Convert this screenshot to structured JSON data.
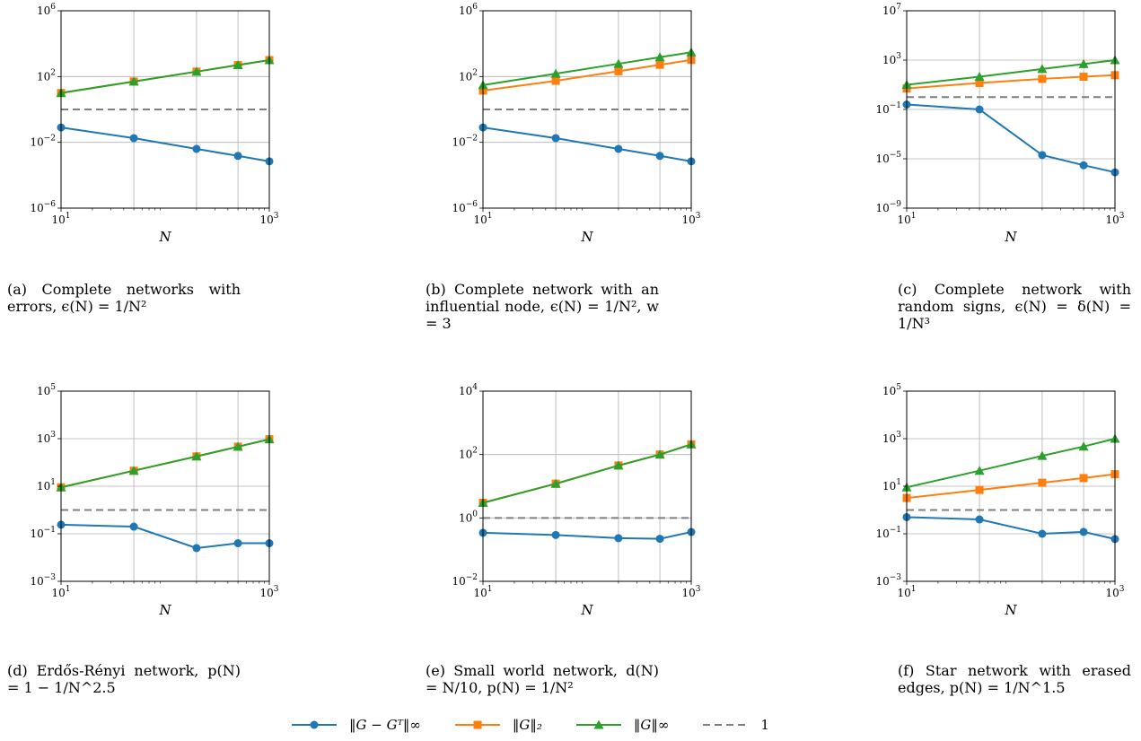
{
  "chart_data": [
    {
      "type": "line",
      "log_x": true,
      "log_y": true,
      "xlim": [
        10,
        1000
      ],
      "ylim_exp": [
        -6,
        6
      ],
      "xticks_exp": [
        1,
        3
      ],
      "yticks_exp": [
        -6,
        -2,
        2,
        6
      ],
      "xlabel": "N",
      "x": [
        10,
        50,
        200,
        500,
        1000
      ],
      "series": [
        {
          "name": "‖G − G^T‖∞",
          "color": "#1f77b4",
          "marker": "circle",
          "values": [
            0.08,
            0.018,
            0.004,
            0.0015,
            0.0007
          ]
        },
        {
          "name": "‖G‖₂",
          "color": "#ff7f0e",
          "marker": "square",
          "values": [
            10,
            50,
            200,
            500,
            1000
          ]
        },
        {
          "name": "‖G‖∞",
          "color": "#2ca02c",
          "marker": "triangle",
          "values": [
            10,
            50,
            200,
            500,
            1000
          ]
        },
        {
          "name": "1",
          "color": "#7f7f7f",
          "marker": "none",
          "dashed": true,
          "values": [
            1,
            1,
            1,
            1,
            1
          ]
        }
      ],
      "caption": "(a) Complete networks with errors, ϵ(N) = 1/N²"
    },
    {
      "type": "line",
      "log_x": true,
      "log_y": true,
      "xlim": [
        10,
        1000
      ],
      "ylim_exp": [
        -6,
        6
      ],
      "xticks_exp": [
        1,
        3
      ],
      "yticks_exp": [
        -6,
        -2,
        2,
        6
      ],
      "xlabel": "N",
      "x": [
        10,
        50,
        200,
        500,
        1000
      ],
      "series": [
        {
          "name": "‖G − G^T‖∞",
          "color": "#1f77b4",
          "marker": "circle",
          "values": [
            0.08,
            0.018,
            0.004,
            0.0015,
            0.0007
          ]
        },
        {
          "name": "‖G‖₂",
          "color": "#ff7f0e",
          "marker": "square",
          "values": [
            14,
            55,
            210,
            520,
            1030
          ]
        },
        {
          "name": "‖G‖∞",
          "color": "#2ca02c",
          "marker": "triangle",
          "values": [
            30,
            150,
            600,
            1500,
            3000
          ]
        },
        {
          "name": "1",
          "color": "#7f7f7f",
          "marker": "none",
          "dashed": true,
          "values": [
            1,
            1,
            1,
            1,
            1
          ]
        }
      ],
      "caption": "(b) Complete network with an influential node, ϵ(N) = 1/N², w = 3"
    },
    {
      "type": "line",
      "log_x": true,
      "log_y": true,
      "xlim": [
        10,
        1000
      ],
      "ylim_exp": [
        -9,
        7
      ],
      "xticks_exp": [
        1,
        3
      ],
      "yticks_exp": [
        -9,
        -5,
        -1,
        3,
        7
      ],
      "xlabel": "N",
      "x": [
        10,
        50,
        200,
        500,
        1000
      ],
      "series": [
        {
          "name": "‖G − G^T‖∞",
          "color": "#1f77b4",
          "marker": "circle",
          "values": [
            0.25,
            0.1,
            2e-05,
            3e-06,
            8e-07
          ]
        },
        {
          "name": "‖G‖₂",
          "color": "#ff7f0e",
          "marker": "square",
          "values": [
            5,
            14,
            30,
            45,
            60
          ]
        },
        {
          "name": "‖G‖∞",
          "color": "#2ca02c",
          "marker": "triangle",
          "values": [
            10,
            45,
            190,
            480,
            1000
          ]
        },
        {
          "name": "1",
          "color": "#7f7f7f",
          "marker": "none",
          "dashed": true,
          "values": [
            1,
            1,
            1,
            1,
            1
          ]
        }
      ],
      "caption": "(c) Complete network with random signs, ϵ(N) = δ(N) = 1/N³"
    },
    {
      "type": "line",
      "log_x": true,
      "log_y": true,
      "xlim": [
        10,
        1000
      ],
      "ylim_exp": [
        -3,
        5
      ],
      "xticks_exp": [
        1,
        3
      ],
      "yticks_exp": [
        -3,
        -1,
        1,
        3,
        5
      ],
      "xlabel": "N",
      "x": [
        10,
        50,
        200,
        500,
        1000
      ],
      "series": [
        {
          "name": "‖G − G^T‖∞",
          "color": "#1f77b4",
          "marker": "circle",
          "values": [
            0.24,
            0.2,
            0.025,
            0.04,
            0.04
          ]
        },
        {
          "name": "‖G‖₂",
          "color": "#ff7f0e",
          "marker": "square",
          "values": [
            9,
            45,
            180,
            460,
            950
          ]
        },
        {
          "name": "‖G‖∞",
          "color": "#2ca02c",
          "marker": "triangle",
          "values": [
            9,
            45,
            180,
            460,
            950
          ]
        },
        {
          "name": "1",
          "color": "#7f7f7f",
          "marker": "none",
          "dashed": true,
          "values": [
            1,
            1,
            1,
            1,
            1
          ]
        }
      ],
      "caption": "(d) Erdős-Rényi network, p(N) = 1 − 1/N^2.5"
    },
    {
      "type": "line",
      "log_x": true,
      "log_y": true,
      "xlim": [
        10,
        1000
      ],
      "ylim_exp": [
        -2,
        4
      ],
      "xticks_exp": [
        1,
        3
      ],
      "yticks_exp": [
        -2,
        0,
        2,
        4
      ],
      "xlabel": "N",
      "x": [
        10,
        50,
        200,
        500,
        1000
      ],
      "series": [
        {
          "name": "‖G − G^T‖∞",
          "color": "#1f77b4",
          "marker": "circle",
          "values": [
            0.34,
            0.29,
            0.23,
            0.22,
            0.36
          ]
        },
        {
          "name": "‖G‖₂",
          "color": "#ff7f0e",
          "marker": "square",
          "values": [
            3,
            12,
            45,
            100,
            210
          ]
        },
        {
          "name": "‖G‖∞",
          "color": "#2ca02c",
          "marker": "triangle",
          "values": [
            3,
            12,
            45,
            100,
            210
          ]
        },
        {
          "name": "1",
          "color": "#7f7f7f",
          "marker": "none",
          "dashed": true,
          "values": [
            1,
            1,
            1,
            1,
            1
          ]
        }
      ],
      "caption": "(e) Small world network, d(N) = N/10, p(N) = 1/N²"
    },
    {
      "type": "line",
      "log_x": true,
      "log_y": true,
      "xlim": [
        10,
        1000
      ],
      "ylim_exp": [
        -3,
        5
      ],
      "xticks_exp": [
        1,
        3
      ],
      "yticks_exp": [
        -3,
        -1,
        1,
        3,
        5
      ],
      "xlabel": "N",
      "x": [
        10,
        50,
        200,
        500,
        1000
      ],
      "series": [
        {
          "name": "‖G − G^T‖∞",
          "color": "#1f77b4",
          "marker": "circle",
          "values": [
            0.5,
            0.4,
            0.1,
            0.12,
            0.06
          ]
        },
        {
          "name": "‖G‖₂",
          "color": "#ff7f0e",
          "marker": "square",
          "values": [
            3.2,
            7,
            14,
            22,
            32
          ]
        },
        {
          "name": "‖G‖∞",
          "color": "#2ca02c",
          "marker": "triangle",
          "values": [
            9,
            45,
            190,
            470,
            1000
          ]
        },
        {
          "name": "1",
          "color": "#7f7f7f",
          "marker": "none",
          "dashed": true,
          "values": [
            1,
            1,
            1,
            1,
            1
          ]
        }
      ],
      "caption": "(f) Star network with erased edges, p(N) = 1/N^1.5"
    }
  ],
  "legend": {
    "placement": "bottom-center",
    "items": [
      {
        "label": "‖G − Gᵀ‖∞",
        "color": "#1f77b4",
        "marker": "circle"
      },
      {
        "label": "‖G‖₂",
        "color": "#ff7f0e",
        "marker": "square"
      },
      {
        "label": "‖G‖∞",
        "color": "#2ca02c",
        "marker": "triangle"
      },
      {
        "label": "1",
        "color": "#7f7f7f",
        "marker": "none",
        "dashed": true
      }
    ]
  },
  "captions": {
    "a": "(a) Complete networks with errors, ϵ(N) = 1/N²",
    "b": "(b) Complete network with an influential node, ϵ(N) = 1/N², w = 3",
    "c": "(c) Complete network with random signs, ϵ(N) = δ(N) = 1/N³",
    "d": "(d) Erdős-Rényi network, p(N) = 1 − 1/N^2.5",
    "e": "(e) Small world network, d(N) = N/10, p(N) = 1/N²",
    "f": "(f) Star network with erased edges, p(N) = 1/N^1.5"
  }
}
